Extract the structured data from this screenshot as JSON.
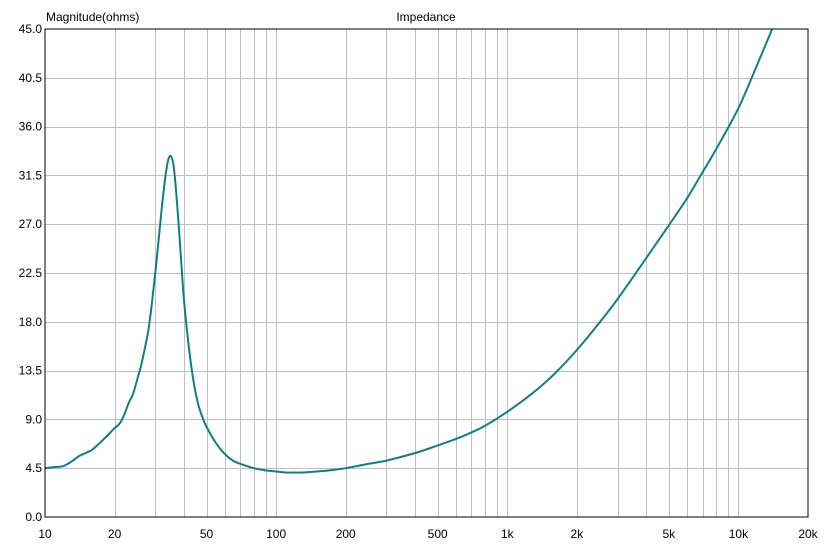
{
  "colors": {
    "background": "#ffffff",
    "grid": "#c0c0c0",
    "frame": "#000000",
    "curve": "#0f8080",
    "text": "#000000"
  },
  "chart_data": {
    "type": "line",
    "title": "Impedance",
    "ylabel": "Magnitude(ohms)",
    "xlabel": "",
    "xscale": "log",
    "xlim": [
      10,
      20000
    ],
    "ylim": [
      0,
      45
    ],
    "grid": true,
    "y_ticks": [
      "0.0",
      "4.5",
      "9.0",
      "13.5",
      "18.0",
      "22.5",
      "27.0",
      "31.5",
      "36.0",
      "40.5",
      "45.0"
    ],
    "x_ticks": [
      {
        "value": 10,
        "label": "10"
      },
      {
        "value": 20,
        "label": "20"
      },
      {
        "value": 50,
        "label": "50"
      },
      {
        "value": 100,
        "label": "100"
      },
      {
        "value": 200,
        "label": "200"
      },
      {
        "value": 500,
        "label": "500"
      },
      {
        "value": 1000,
        "label": "1k"
      },
      {
        "value": 2000,
        "label": "2k"
      },
      {
        "value": 5000,
        "label": "5k"
      },
      {
        "value": 10000,
        "label": "10k"
      },
      {
        "value": 20000,
        "label": "20k"
      }
    ],
    "series": [
      {
        "x": [
          10,
          11,
          12,
          13,
          14,
          15,
          16,
          17,
          18,
          19,
          20,
          21,
          22,
          23,
          24,
          25,
          26,
          27,
          28,
          29,
          30,
          31,
          32,
          33,
          34,
          35,
          36,
          37,
          38,
          39,
          40,
          42,
          44,
          46,
          48,
          50,
          55,
          60,
          65,
          70,
          80,
          90,
          100,
          110,
          120,
          130,
          150,
          170,
          200,
          250,
          300,
          400,
          500,
          600,
          700,
          800,
          1000,
          1300,
          1600,
          2000,
          2500,
          3000,
          4000,
          5000,
          6000,
          7000,
          8000,
          10000,
          12000,
          14000
        ],
        "y": [
          4.5,
          4.6,
          4.7,
          5.1,
          5.6,
          5.9,
          6.2,
          6.7,
          7.2,
          7.7,
          8.2,
          8.6,
          9.4,
          10.5,
          11.3,
          12.6,
          13.9,
          15.5,
          17.2,
          19.7,
          22.5,
          25.5,
          28.5,
          31.0,
          32.8,
          33.3,
          32.4,
          29.8,
          26.5,
          23.0,
          19.8,
          15.5,
          12.4,
          10.4,
          9.2,
          8.3,
          6.8,
          5.8,
          5.2,
          4.9,
          4.5,
          4.3,
          4.2,
          4.1,
          4.1,
          4.1,
          4.2,
          4.3,
          4.5,
          4.9,
          5.2,
          5.9,
          6.6,
          7.2,
          7.8,
          8.4,
          9.7,
          11.5,
          13.2,
          15.4,
          17.9,
          20.1,
          23.9,
          26.9,
          29.4,
          31.8,
          33.9,
          37.7,
          41.6,
          45.0
        ]
      }
    ]
  }
}
